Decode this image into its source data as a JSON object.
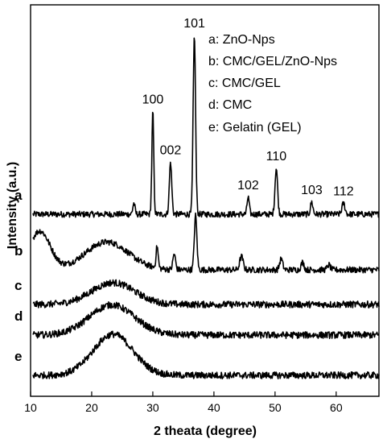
{
  "chart_data": {
    "type": "line",
    "xlabel": "2 theata (degree)",
    "ylabel": "Intensity (a.u.)",
    "xlim": [
      10,
      67
    ],
    "xticks": [
      10,
      20,
      30,
      40,
      50,
      60
    ],
    "grid": false,
    "legend": [
      "a: ZnO-Nps",
      "b: CMC/GEL/ZnO-Nps",
      "c: CMC/GEL",
      "d: CMC",
      "e: Gelatin (GEL)"
    ],
    "legend_position": "top-right",
    "series": [
      {
        "name": "a",
        "baseline": 0.0,
        "noise": 0.25,
        "peaks": [
          {
            "x": 26.9,
            "h": 0.9,
            "w": 0.25
          },
          {
            "x": 30.0,
            "h": 8.5,
            "w": 0.22
          },
          {
            "x": 32.9,
            "h": 4.3,
            "w": 0.28
          },
          {
            "x": 36.8,
            "h": 14.8,
            "w": 0.28
          },
          {
            "x": 45.6,
            "h": 1.4,
            "w": 0.25
          },
          {
            "x": 50.2,
            "h": 3.8,
            "w": 0.3
          },
          {
            "x": 56.0,
            "h": 1.0,
            "w": 0.28
          },
          {
            "x": 61.2,
            "h": 0.9,
            "w": 0.35
          }
        ],
        "humps": []
      },
      {
        "name": "b",
        "baseline": 0.0,
        "noise": 0.25,
        "peaks": [
          {
            "x": 30.7,
            "h": 1.8,
            "w": 0.25
          },
          {
            "x": 33.5,
            "h": 1.3,
            "w": 0.3
          },
          {
            "x": 37.0,
            "h": 4.5,
            "w": 0.3
          },
          {
            "x": 44.5,
            "h": 1.1,
            "w": 0.4
          },
          {
            "x": 51.0,
            "h": 0.9,
            "w": 0.35
          },
          {
            "x": 54.5,
            "h": 0.6,
            "w": 0.35
          },
          {
            "x": 58.8,
            "h": 0.4,
            "w": 0.35
          }
        ],
        "humps": [
          {
            "x": 11.5,
            "h": 3.2,
            "w": 2.4
          },
          {
            "x": 22.5,
            "h": 2.3,
            "w": 5.0
          }
        ]
      },
      {
        "name": "c",
        "baseline": 0.0,
        "noise": 0.28,
        "peaks": [],
        "humps": [
          {
            "x": 23.5,
            "h": 1.8,
            "w": 5.0
          }
        ]
      },
      {
        "name": "d",
        "baseline": 0.0,
        "noise": 0.28,
        "peaks": [],
        "humps": [
          {
            "x": 23.3,
            "h": 2.5,
            "w": 5.2
          }
        ]
      },
      {
        "name": "e",
        "baseline": 0.0,
        "noise": 0.28,
        "peaks": [],
        "humps": [
          {
            "x": 23.5,
            "h": 3.4,
            "w": 4.6
          }
        ]
      }
    ],
    "peak_labels": [
      {
        "text": "100",
        "x": 30.0
      },
      {
        "text": "002",
        "x": 32.9
      },
      {
        "text": "101",
        "x": 36.8
      },
      {
        "text": "102",
        "x": 45.6
      },
      {
        "text": "110",
        "x": 50.2
      },
      {
        "text": "103",
        "x": 56.0
      },
      {
        "text": "112",
        "x": 61.2
      }
    ]
  }
}
